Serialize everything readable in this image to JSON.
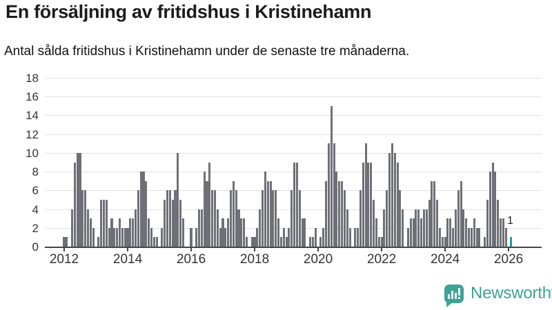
{
  "header": {
    "title": "En försäljning av fritidshus i Kristinehamn",
    "subtitle": "Antal sålda fritidshus i Kristinehamn under de senaste tre månaderna."
  },
  "chart_data": {
    "type": "bar",
    "title": "En försäljning av fritidshus i Kristinehamn",
    "subtitle": "Antal sålda fritidshus i Kristinehamn under de senaste tre månaderna.",
    "frequency": "monthly",
    "x_start": "2012-01",
    "x_end": "2026-02",
    "values": [
      1,
      1,
      0,
      4,
      9,
      10,
      10,
      6,
      6,
      4,
      3,
      2,
      0,
      1,
      5,
      5,
      5,
      2,
      3,
      2,
      2,
      3,
      2,
      2,
      2,
      3,
      3,
      4,
      6,
      8,
      8,
      7,
      3,
      2,
      1,
      1,
      0,
      2,
      5,
      6,
      6,
      5,
      6,
      10,
      5,
      3,
      0,
      0,
      2,
      0,
      2,
      4,
      4,
      8,
      7,
      9,
      6,
      6,
      4,
      2,
      3,
      2,
      3,
      6,
      7,
      6,
      4,
      3,
      3,
      1,
      0,
      1,
      1,
      2,
      4,
      6,
      8,
      7,
      7,
      6,
      6,
      3,
      1,
      2,
      1,
      2,
      6,
      9,
      9,
      6,
      3,
      3,
      0,
      1,
      1,
      2,
      0,
      1,
      2,
      7,
      11,
      15,
      11,
      8,
      7,
      7,
      6,
      4,
      2,
      0,
      2,
      2,
      6,
      9,
      11,
      9,
      9,
      5,
      3,
      1,
      1,
      4,
      6,
      10,
      11,
      10,
      9,
      6,
      4,
      0,
      2,
      3,
      3,
      4,
      4,
      3,
      4,
      4,
      5,
      7,
      7,
      5,
      2,
      1,
      1,
      3,
      3,
      2,
      4,
      6,
      7,
      4,
      3,
      2,
      2,
      3,
      2,
      2,
      0,
      1,
      5,
      8,
      9,
      8,
      5,
      3,
      3,
      2,
      0,
      1
    ],
    "highlight_last": true,
    "last_value_label": "1",
    "x_tick_labels": [
      "2012",
      "2014",
      "2016",
      "2018",
      "2020",
      "2022",
      "2024",
      "2026"
    ],
    "y_ticks": [
      0,
      2,
      4,
      6,
      8,
      10,
      12,
      14,
      16,
      18
    ],
    "ylim": [
      0,
      18
    ],
    "grid": "horizontal",
    "legend": "none",
    "bar_color": "#6d7076",
    "highlight_color": "#14a2a2",
    "axis_color": "#43464a",
    "gridline_color": "#e2e2e2"
  },
  "annotation": {
    "last_value": "1"
  },
  "footer": {
    "brand": "Newsworthy",
    "brand_color": "#3ea295",
    "icon": "bar-chart-speech-bubble-icon"
  }
}
